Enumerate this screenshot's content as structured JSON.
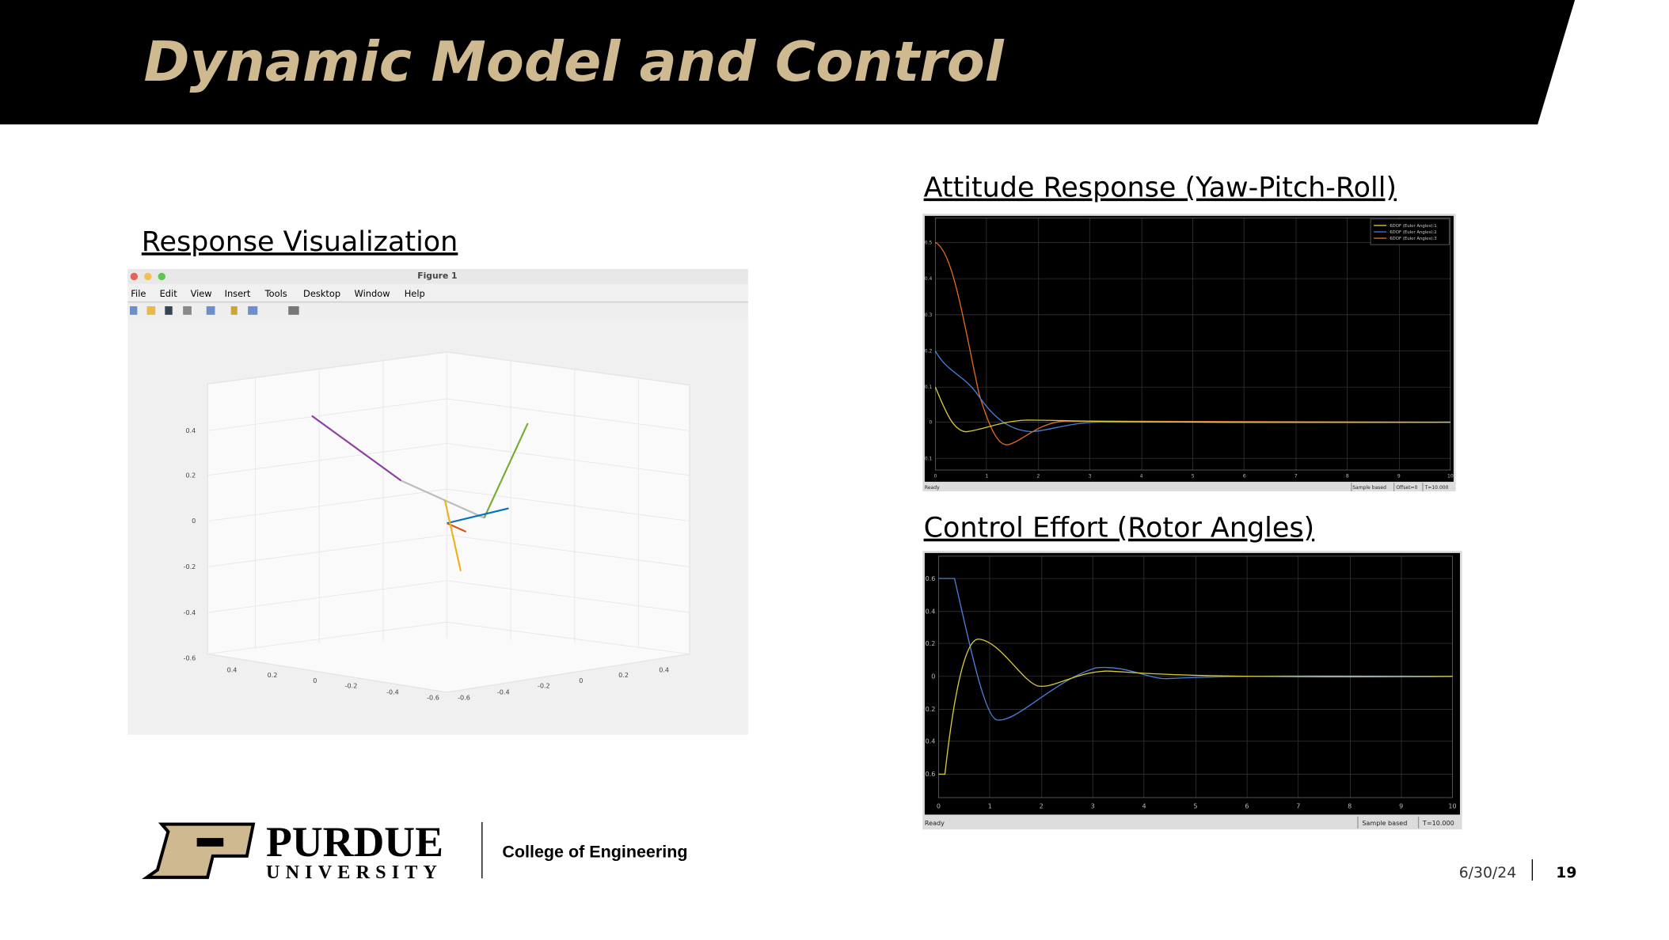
{
  "header": {
    "title": "Dynamic Model and Control"
  },
  "figure": {
    "heading": "Response Visualization",
    "window_title": "Figure 1",
    "menu": [
      "File",
      "Edit",
      "View",
      "Insert",
      "Tools",
      "Desktop",
      "Window",
      "Help"
    ],
    "z_ticks": [
      "0.4",
      "0.2",
      "0",
      "-0.2",
      "-0.4",
      "-0.6"
    ],
    "x_ticks": [
      "0.4",
      "0.2",
      "0",
      "-0.2",
      "-0.4",
      "-0.6"
    ],
    "y_ticks": [
      "-0.6",
      "-0.4",
      "-0.2",
      "0",
      "0.2",
      "0.4"
    ]
  },
  "attitude": {
    "heading": "Attitude Response (Yaw-Pitch-Roll)",
    "legend": [
      "6DOF (Euler Angles):1",
      "6DOF (Euler Angles):2",
      "6DOF (Euler Angles):3"
    ],
    "y_ticks": [
      "0.5",
      "0.4",
      "0.3",
      "0.2",
      "0.1",
      "0",
      "-0.1"
    ],
    "x_ticks": [
      "0",
      "1",
      "2",
      "3",
      "4",
      "5",
      "6",
      "7",
      "8",
      "9",
      "10"
    ],
    "status": [
      "Ready",
      "Sample based",
      "Offset=0",
      "T=10.000"
    ]
  },
  "control": {
    "heading": "Control Effort (Rotor Angles)",
    "y_ticks": [
      "0.6",
      "0.4",
      "0.2",
      "0",
      "-0.2",
      "-0.4",
      "-0.6"
    ],
    "x_ticks": [
      "0",
      "1",
      "2",
      "3",
      "4",
      "5",
      "6",
      "7",
      "8",
      "9",
      "10"
    ],
    "status": [
      "Ready",
      "Sample based",
      "T=10.000"
    ]
  },
  "footer": {
    "university": "PURDUE",
    "university_sub": "UNIVERSITY",
    "college": "College of Engineering",
    "date": "6/30/24",
    "page": "19"
  }
}
